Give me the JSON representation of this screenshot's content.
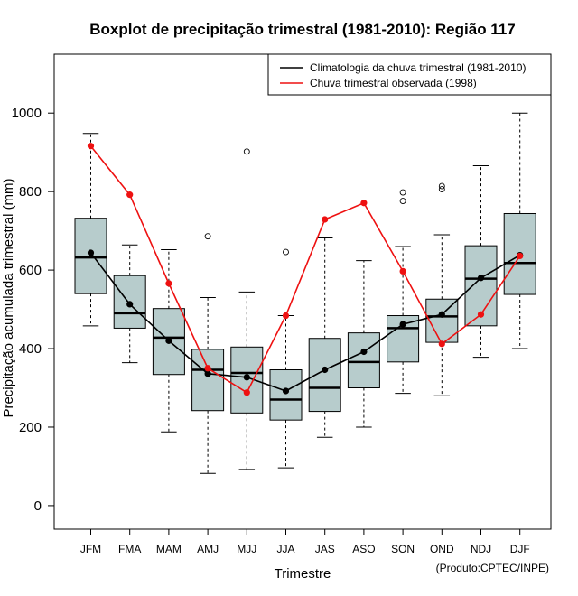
{
  "chart_data": {
    "type": "boxplot",
    "title": "Boxplot de precipitação trimestral (1981-2010): Região 117",
    "xlabel": "Trimestre",
    "ylabel": "Precipitação acumulada trimestral (mm)",
    "ylim": [
      -60,
      1150
    ],
    "yticks": [
      0,
      200,
      400,
      600,
      800,
      1000
    ],
    "categories": [
      "JFM",
      "FMA",
      "MAM",
      "AMJ",
      "MJJ",
      "JJA",
      "JAS",
      "ASO",
      "SON",
      "OND",
      "NDJ",
      "DJF"
    ],
    "boxes": [
      {
        "whisker_low": 458,
        "q1": 540,
        "median": 632,
        "q3": 732,
        "whisker_high": 948,
        "outliers": []
      },
      {
        "whisker_low": 364,
        "q1": 452,
        "median": 490,
        "q3": 586,
        "whisker_high": 664,
        "outliers": []
      },
      {
        "whisker_low": 188,
        "q1": 334,
        "median": 428,
        "q3": 502,
        "whisker_high": 652,
        "outliers": []
      },
      {
        "whisker_low": 82,
        "q1": 242,
        "median": 346,
        "q3": 398,
        "whisker_high": 530,
        "outliers": [
          686
        ]
      },
      {
        "whisker_low": 92,
        "q1": 236,
        "median": 338,
        "q3": 404,
        "whisker_high": 544,
        "outliers": [
          902
        ]
      },
      {
        "whisker_low": 96,
        "q1": 218,
        "median": 270,
        "q3": 346,
        "whisker_high": 484,
        "outliers": [
          646
        ]
      },
      {
        "whisker_low": 174,
        "q1": 240,
        "median": 300,
        "q3": 426,
        "whisker_high": 682,
        "outliers": []
      },
      {
        "whisker_low": 200,
        "q1": 300,
        "median": 366,
        "q3": 440,
        "whisker_high": 624,
        "outliers": []
      },
      {
        "whisker_low": 286,
        "q1": 366,
        "median": 452,
        "q3": 484,
        "whisker_high": 660,
        "outliers": [
          776,
          798
        ]
      },
      {
        "whisker_low": 280,
        "q1": 416,
        "median": 482,
        "q3": 526,
        "whisker_high": 690,
        "outliers": [
          806,
          814
        ]
      },
      {
        "whisker_low": 378,
        "q1": 458,
        "median": 578,
        "q3": 662,
        "whisker_high": 866,
        "outliers": []
      },
      {
        "whisker_low": 400,
        "q1": 538,
        "median": 618,
        "q3": 744,
        "whisker_high": 1000,
        "outliers": []
      }
    ],
    "series": [
      {
        "name": "Climatologia da chuva trimestral (1981-2010)",
        "color": "#000000",
        "values": [
          644,
          513,
          420,
          336,
          327,
          292,
          346,
          392,
          462,
          487,
          580,
          638
        ]
      },
      {
        "name": "Chuva trimestral observada (1998)",
        "color": "#ee1111",
        "values": [
          916,
          792,
          566,
          350,
          288,
          484,
          729,
          771,
          597,
          412,
          487,
          636
        ]
      }
    ],
    "box_color": "#b7cccc",
    "legend_position": "top-right",
    "credit": "(Produto:CPTEC/INPE)"
  }
}
